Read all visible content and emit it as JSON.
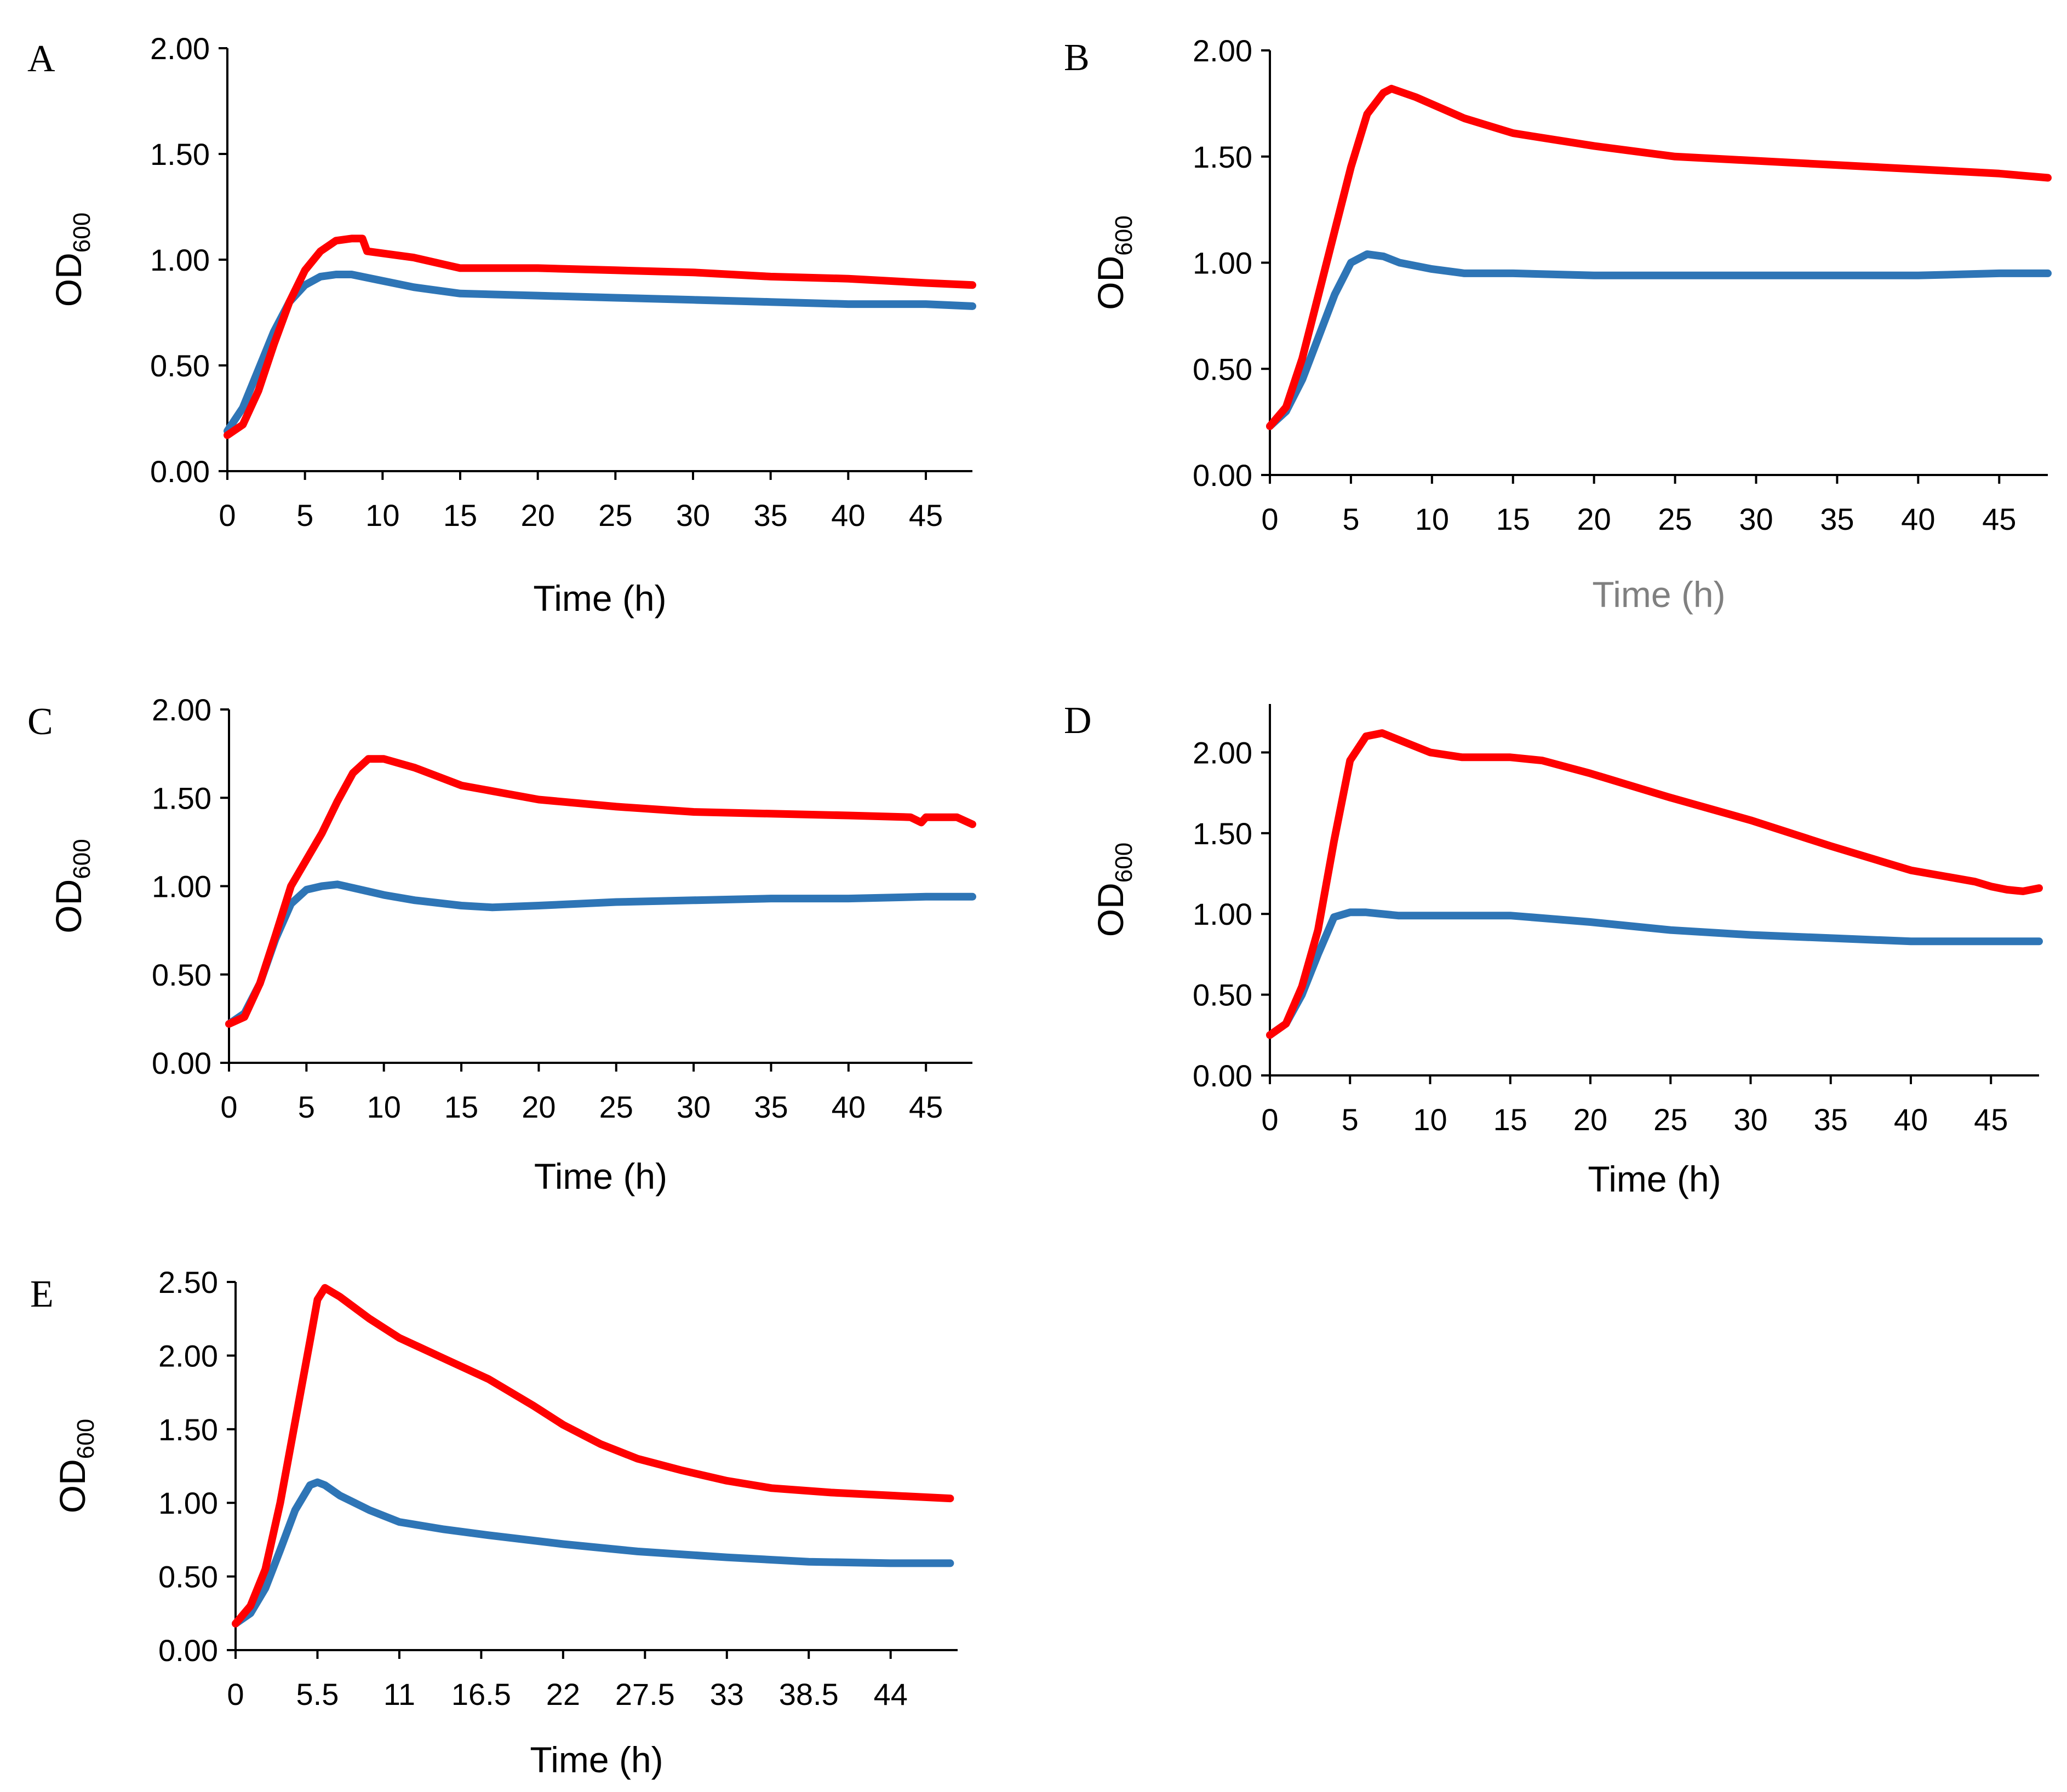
{
  "chart_data": [
    {
      "panel": "A",
      "type": "line",
      "title": "",
      "xlabel": "Time (h)",
      "ylabel_main": "OD",
      "ylabel_sub": "600",
      "xlim": [
        0,
        48
      ],
      "ylim": [
        0,
        2
      ],
      "xticks": [
        0,
        5,
        10,
        15,
        20,
        25,
        30,
        35,
        40,
        45
      ],
      "xtick_labels": [
        "0",
        "5",
        "10",
        "15",
        "20",
        "25",
        "30",
        "35",
        "40",
        "45"
      ],
      "yticks": [
        0,
        0.5,
        1,
        1.5,
        2
      ],
      "ytick_labels": [
        "0.00",
        "0.50",
        "1.00",
        "1.50",
        "2.00"
      ],
      "series": [
        {
          "name": "red",
          "color": "#ff0000",
          "x": [
            0,
            1,
            2,
            3,
            4,
            5,
            6,
            7,
            8,
            8.7,
            9,
            12,
            15,
            20,
            25,
            30,
            35,
            40,
            45,
            48
          ],
          "y": [
            0.17,
            0.22,
            0.38,
            0.6,
            0.8,
            0.95,
            1.04,
            1.09,
            1.1,
            1.1,
            1.04,
            1.01,
            0.96,
            0.96,
            0.95,
            0.94,
            0.92,
            0.91,
            0.89,
            0.88
          ]
        },
        {
          "name": "blue",
          "color": "#2e75b6",
          "x": [
            0,
            1,
            2,
            3,
            4,
            5,
            6,
            7,
            8,
            10,
            12,
            15,
            20,
            25,
            30,
            35,
            40,
            45,
            48
          ],
          "y": [
            0.19,
            0.3,
            0.48,
            0.66,
            0.8,
            0.88,
            0.92,
            0.93,
            0.93,
            0.9,
            0.87,
            0.84,
            0.83,
            0.82,
            0.81,
            0.8,
            0.79,
            0.79,
            0.78
          ]
        }
      ]
    },
    {
      "panel": "B",
      "type": "line",
      "title": "",
      "xlabel": "Time (h)",
      "xlabel_color": "#808080",
      "ylabel_main": "OD",
      "ylabel_sub": "600",
      "xlim": [
        0,
        48
      ],
      "ylim": [
        0,
        2
      ],
      "xticks": [
        0,
        5,
        10,
        15,
        20,
        25,
        30,
        35,
        40,
        45
      ],
      "xtick_labels": [
        "0",
        "5",
        "10",
        "15",
        "20",
        "25",
        "30",
        "35",
        "40",
        "45"
      ],
      "yticks": [
        0,
        0.5,
        1,
        1.5,
        2
      ],
      "ytick_labels": [
        "0.00",
        "0.50",
        "1.00",
        "1.50",
        "2.00"
      ],
      "series": [
        {
          "name": "red",
          "color": "#ff0000",
          "x": [
            0,
            1,
            2,
            3,
            4,
            5,
            6,
            7,
            7.5,
            9,
            12,
            15,
            20,
            25,
            30,
            35,
            40,
            45,
            48
          ],
          "y": [
            0.23,
            0.32,
            0.55,
            0.85,
            1.15,
            1.45,
            1.7,
            1.8,
            1.82,
            1.78,
            1.68,
            1.61,
            1.55,
            1.5,
            1.48,
            1.46,
            1.44,
            1.42,
            1.4
          ]
        },
        {
          "name": "blue",
          "color": "#2e75b6",
          "x": [
            0,
            1,
            2,
            3,
            4,
            5,
            6,
            7,
            8,
            10,
            12,
            15,
            20,
            25,
            30,
            35,
            40,
            45,
            48
          ],
          "y": [
            0.23,
            0.3,
            0.45,
            0.65,
            0.85,
            1.0,
            1.04,
            1.03,
            1.0,
            0.97,
            0.95,
            0.95,
            0.94,
            0.94,
            0.94,
            0.94,
            0.94,
            0.95,
            0.95
          ]
        }
      ]
    },
    {
      "panel": "C",
      "type": "line",
      "title": "",
      "xlabel": "Time (h)",
      "ylabel_main": "OD",
      "ylabel_sub": "600",
      "xlim": [
        0,
        48
      ],
      "ylim": [
        0,
        2
      ],
      "xticks": [
        0,
        5,
        10,
        15,
        20,
        25,
        30,
        35,
        40,
        45
      ],
      "xtick_labels": [
        "0",
        "5",
        "10",
        "15",
        "20",
        "25",
        "30",
        "35",
        "40",
        "45"
      ],
      "yticks": [
        0,
        0.5,
        1,
        1.5,
        2
      ],
      "ytick_labels": [
        "0.00",
        "0.50",
        "1.00",
        "1.50",
        "2.00"
      ],
      "series": [
        {
          "name": "red",
          "color": "#ff0000",
          "x": [
            0,
            1,
            2,
            3,
            4,
            5,
            6,
            7,
            8,
            9,
            10,
            12,
            15,
            20,
            25,
            30,
            35,
            40,
            44,
            44.7,
            45,
            46,
            47,
            48
          ],
          "y": [
            0.22,
            0.26,
            0.45,
            0.72,
            1.0,
            1.15,
            1.3,
            1.48,
            1.64,
            1.72,
            1.72,
            1.67,
            1.57,
            1.49,
            1.45,
            1.42,
            1.41,
            1.4,
            1.39,
            1.36,
            1.39,
            1.39,
            1.39,
            1.35
          ]
        },
        {
          "name": "blue",
          "color": "#2e75b6",
          "x": [
            0,
            1,
            2,
            3,
            4,
            5,
            6,
            7,
            8,
            10,
            12,
            15,
            17,
            20,
            25,
            30,
            35,
            40,
            45,
            48
          ],
          "y": [
            0.22,
            0.28,
            0.45,
            0.7,
            0.9,
            0.98,
            1.0,
            1.01,
            0.99,
            0.95,
            0.92,
            0.89,
            0.88,
            0.89,
            0.91,
            0.92,
            0.93,
            0.93,
            0.94,
            0.94
          ]
        }
      ]
    },
    {
      "panel": "D",
      "type": "line",
      "title": "",
      "xlabel": "Time (h)",
      "ylabel_main": "OD",
      "ylabel_sub": "600",
      "xlim": [
        0,
        48
      ],
      "ylim": [
        0,
        2.3
      ],
      "xticks": [
        0,
        5,
        10,
        15,
        20,
        25,
        30,
        35,
        40,
        45
      ],
      "xtick_labels": [
        "0",
        "5",
        "10",
        "15",
        "20",
        "25",
        "30",
        "35",
        "40",
        "45"
      ],
      "yticks": [
        0,
        0.5,
        1,
        1.5,
        2
      ],
      "ytick_labels": [
        "0.00",
        "0.50",
        "1.00",
        "1.50",
        "2.00"
      ],
      "series": [
        {
          "name": "red",
          "color": "#ff0000",
          "x": [
            0,
            1,
            2,
            3,
            4,
            5,
            6,
            7,
            8,
            10,
            12,
            15,
            17,
            20,
            25,
            30,
            35,
            40,
            44,
            45,
            46,
            47,
            48
          ],
          "y": [
            0.25,
            0.32,
            0.55,
            0.9,
            1.45,
            1.95,
            2.1,
            2.12,
            2.08,
            2.0,
            1.97,
            1.97,
            1.95,
            1.87,
            1.72,
            1.58,
            1.42,
            1.27,
            1.2,
            1.17,
            1.15,
            1.14,
            1.16
          ]
        },
        {
          "name": "blue",
          "color": "#2e75b6",
          "x": [
            0,
            1,
            2,
            3,
            4,
            5,
            6,
            8,
            10,
            12,
            15,
            20,
            25,
            30,
            35,
            40,
            45,
            48
          ],
          "y": [
            0.25,
            0.32,
            0.5,
            0.75,
            0.98,
            1.01,
            1.01,
            0.99,
            0.99,
            0.99,
            0.99,
            0.95,
            0.9,
            0.87,
            0.85,
            0.83,
            0.83,
            0.83
          ]
        }
      ]
    },
    {
      "panel": "E",
      "type": "line",
      "title": "",
      "xlabel": "Time (h)",
      "ylabel_main": "OD",
      "ylabel_sub": "600",
      "xlim": [
        0,
        48.5
      ],
      "ylim": [
        0,
        2.5
      ],
      "xticks": [
        0,
        5.5,
        11,
        16.5,
        22,
        27.5,
        33,
        38.5,
        44
      ],
      "xtick_labels": [
        "0",
        "5.5",
        "11",
        "16.5",
        "22",
        "27.5",
        "33",
        "38.5",
        "44"
      ],
      "yticks": [
        0,
        0.5,
        1,
        1.5,
        2,
        2.5
      ],
      "ytick_labels": [
        "0.00",
        "0.50",
        "1.00",
        "1.50",
        "2.00",
        "2.50"
      ],
      "series": [
        {
          "name": "red",
          "color": "#ff0000",
          "x": [
            0,
            1,
            2,
            3,
            4,
            5,
            5.5,
            6,
            7,
            9,
            11,
            14,
            17,
            20,
            22,
            24.5,
            27,
            30,
            33,
            36,
            40,
            44,
            48
          ],
          "y": [
            0.18,
            0.3,
            0.55,
            1.0,
            1.55,
            2.1,
            2.38,
            2.46,
            2.4,
            2.25,
            2.12,
            1.98,
            1.84,
            1.66,
            1.53,
            1.4,
            1.3,
            1.22,
            1.15,
            1.1,
            1.07,
            1.05,
            1.03
          ]
        },
        {
          "name": "blue",
          "color": "#2e75b6",
          "x": [
            0,
            1,
            2,
            3,
            4,
            5,
            5.5,
            6,
            7,
            9,
            11,
            14,
            17,
            22,
            27,
            33,
            38.5,
            44,
            48
          ],
          "y": [
            0.18,
            0.25,
            0.42,
            0.68,
            0.95,
            1.12,
            1.14,
            1.12,
            1.05,
            0.95,
            0.87,
            0.82,
            0.78,
            0.72,
            0.67,
            0.63,
            0.6,
            0.59,
            0.59
          ]
        }
      ]
    }
  ]
}
